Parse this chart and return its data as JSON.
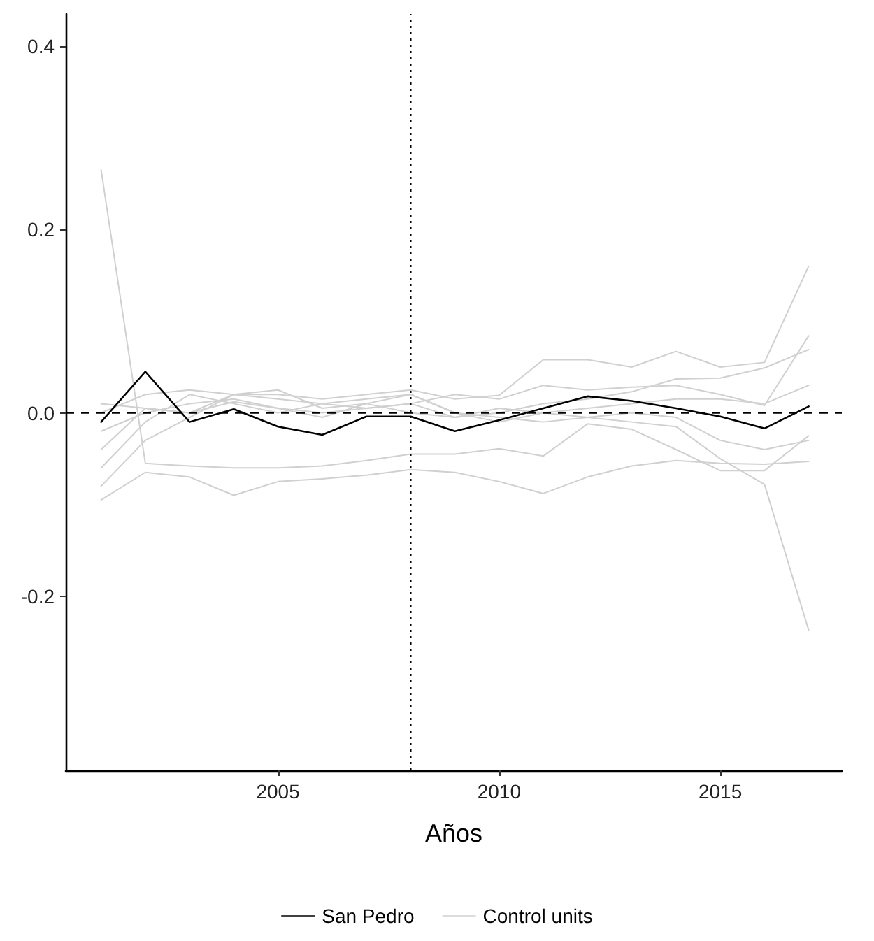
{
  "chart_data": {
    "type": "line",
    "xlabel": "Años",
    "x": [
      2001,
      2002,
      2003,
      2004,
      2005,
      2006,
      2007,
      2008,
      2009,
      2010,
      2011,
      2012,
      2013,
      2014,
      2015,
      2016,
      2017
    ],
    "series": [
      {
        "name": "Control units",
        "color": "#d0d0d0",
        "values": [
          0.265,
          -0.055,
          -0.058,
          -0.06,
          -0.06,
          -0.058,
          -0.052,
          -0.045,
          -0.045,
          -0.039,
          -0.047,
          -0.012,
          -0.018,
          -0.04,
          -0.063,
          -0.063,
          -0.025
        ]
      },
      {
        "color": "#d0d0d0",
        "values": [
          -0.04,
          0.005,
          0.0,
          0.012,
          0.005,
          -0.005,
          0.01,
          0.0,
          -0.005,
          0.005,
          0.0,
          -0.005,
          -0.01,
          -0.015,
          -0.05,
          -0.078,
          -0.237
        ]
      },
      {
        "color": "#d0d0d0",
        "values": [
          -0.095,
          -0.065,
          -0.07,
          -0.09,
          -0.075,
          -0.072,
          -0.068,
          -0.062,
          -0.065,
          -0.075,
          -0.088,
          -0.07,
          -0.058,
          -0.052,
          -0.055,
          -0.056,
          -0.053
        ]
      },
      {
        "color": "#d0d0d0",
        "values": [
          0.0,
          0.02,
          0.025,
          0.02,
          0.02,
          0.015,
          0.02,
          0.025,
          0.015,
          0.019,
          0.058,
          0.058,
          0.05,
          0.067,
          0.05,
          0.055,
          0.16
        ]
      },
      {
        "color": "#d0d0d0",
        "values": [
          0.01,
          0.005,
          0.0,
          0.02,
          0.015,
          0.01,
          0.005,
          0.01,
          0.02,
          0.015,
          0.03,
          0.025,
          0.028,
          0.03,
          0.02,
          0.008,
          0.084
        ]
      },
      {
        "color": "#d0d0d0",
        "values": [
          -0.02,
          0.0,
          0.01,
          0.015,
          0.005,
          0.0,
          0.005,
          0.01,
          -0.005,
          0.0,
          0.01,
          0.015,
          0.023,
          0.037,
          0.038,
          0.049,
          0.069
        ]
      },
      {
        "color": "#d0d0d0",
        "values": [
          -0.06,
          -0.01,
          0.02,
          0.01,
          0.0,
          0.01,
          0.015,
          0.02,
          0.0,
          -0.01,
          0.0,
          0.005,
          0.01,
          0.015,
          0.015,
          0.01,
          0.03
        ]
      },
      {
        "color": "#d0d0d0",
        "values": [
          -0.08,
          -0.03,
          -0.005,
          0.02,
          0.025,
          0.005,
          0.01,
          0.02,
          0.0,
          -0.005,
          -0.01,
          -0.005,
          0.0,
          -0.005,
          -0.03,
          -0.04,
          -0.03
        ]
      },
      {
        "name": "San Pedro",
        "color": "#000000",
        "values": [
          -0.01,
          0.045,
          -0.01,
          0.004,
          -0.015,
          -0.024,
          -0.004,
          -0.004,
          -0.02,
          -0.008,
          0.005,
          0.018,
          0.013,
          0.005,
          -0.004,
          -0.017,
          0.007
        ]
      }
    ],
    "xlim": [
      2000.2,
      2017.75
    ],
    "xticks": [
      2005,
      2010,
      2015
    ],
    "ylim": [
      -0.39,
      0.435
    ],
    "yticks": [
      {
        "value": -0.2,
        "label": "-0.2"
      },
      {
        "value": 0,
        "label": "0.0"
      },
      {
        "value": 0.2,
        "label": "0.2"
      },
      {
        "value": 0.4,
        "label": "0.4"
      }
    ],
    "ref_lines": [
      {
        "axis": "x",
        "value": 2008,
        "color": "#000000",
        "line_style": "dotted"
      },
      {
        "axis": "y",
        "value": 0,
        "color": "#000000",
        "line_style": "dashed"
      }
    ],
    "grid": false,
    "legend": "bottom",
    "marker": "none",
    "line_style": "solid"
  }
}
